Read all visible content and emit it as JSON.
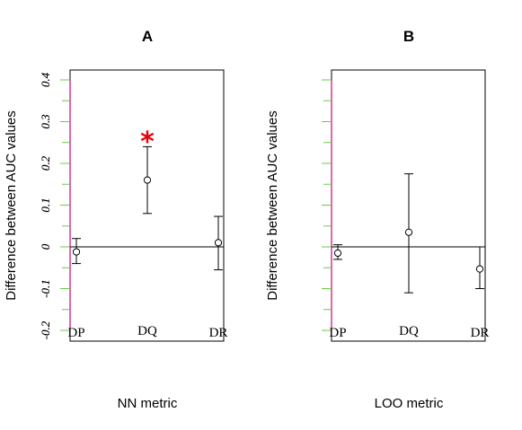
{
  "chart_data": [
    {
      "type": "scatter",
      "title": "A",
      "xlabel": "NN metric",
      "ylabel": "Difference between AUC values",
      "categories": [
        "DP",
        "DQ",
        "DR"
      ],
      "ylim": [
        -0.2,
        0.4
      ],
      "yticks": [
        "-0.2",
        "-0.1",
        "0",
        "0.1",
        "0.2",
        "0.3",
        "0.4"
      ],
      "points": [
        {
          "category": "DP",
          "value": -0.012,
          "lower": -0.04,
          "upper": 0.02
        },
        {
          "category": "DQ",
          "value": 0.16,
          "lower": 0.08,
          "upper": 0.24
        },
        {
          "category": "DR",
          "value": 0.01,
          "lower": -0.055,
          "upper": 0.073
        }
      ],
      "annotations": [
        {
          "category": "DQ",
          "text": "*",
          "color": "#e8000b"
        }
      ]
    },
    {
      "type": "scatter",
      "title": "B",
      "xlabel": "LOO metric",
      "ylabel": "Difference between AUC values",
      "categories": [
        "DP",
        "DQ",
        "DR"
      ],
      "ylim": [
        -0.2,
        0.4
      ],
      "yticks": [
        "-0.2",
        "-0.1",
        "0",
        "0.1",
        "0.2",
        "0.3",
        "0.4"
      ],
      "points": [
        {
          "category": "DP",
          "value": -0.015,
          "lower": -0.03,
          "upper": 0.005
        },
        {
          "category": "DQ",
          "value": 0.035,
          "lower": -0.11,
          "upper": 0.175
        },
        {
          "category": "DR",
          "value": -0.053,
          "lower": -0.1,
          "upper": 0.0
        }
      ],
      "annotations": []
    }
  ],
  "colors": {
    "tick_green": "#66cc44",
    "axis_magenta": "#cc0077",
    "star_red": "#e8000b"
  }
}
